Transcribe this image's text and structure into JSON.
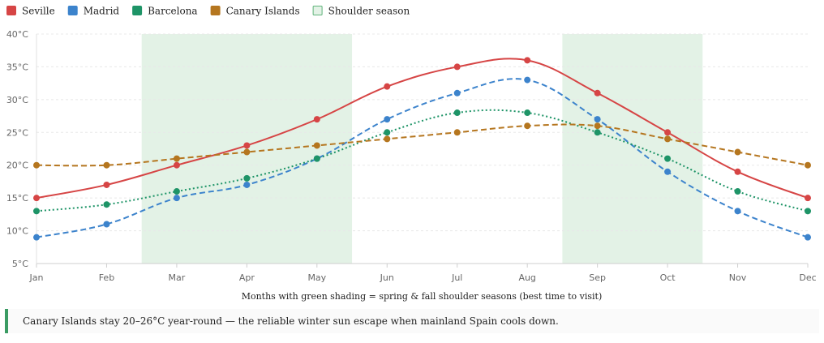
{
  "chart_data": {
    "type": "line",
    "title": "",
    "xlabel": "Months with green shading = spring & fall shoulder seasons (best time to visit)",
    "ylabel": "",
    "categories": [
      "Jan",
      "Feb",
      "Mar",
      "Apr",
      "May",
      "Jun",
      "Jul",
      "Aug",
      "Sep",
      "Oct",
      "Nov",
      "Dec"
    ],
    "ylim": [
      5,
      40
    ],
    "yticks": [
      5,
      10,
      15,
      20,
      25,
      30,
      35,
      40
    ],
    "ytick_labels": [
      "5°C",
      "10°C",
      "15°C",
      "20°C",
      "25°C",
      "30°C",
      "35°C",
      "40°C"
    ],
    "grid": true,
    "legend_position": "top-left",
    "series": [
      {
        "name": "Seville",
        "color": "#d64545",
        "dash": "solid",
        "values": [
          15,
          17,
          20,
          23,
          27,
          32,
          35,
          36,
          31,
          25,
          19,
          15
        ]
      },
      {
        "name": "Madrid",
        "color": "#3c83cc",
        "dash": "dashed",
        "values": [
          9,
          11,
          15,
          17,
          21,
          27,
          31,
          33,
          27,
          19,
          13,
          9
        ]
      },
      {
        "name": "Barcelona",
        "color": "#1e9467",
        "dash": "dotted",
        "values": [
          13,
          14,
          16,
          18,
          21,
          25,
          28,
          28,
          25,
          21,
          16,
          13
        ]
      },
      {
        "name": "Canary Islands",
        "color": "#b5761f",
        "dash": "dashed",
        "values": [
          20,
          20,
          21,
          22,
          23,
          24,
          25,
          26,
          26,
          24,
          22,
          20
        ]
      }
    ],
    "shaded_regions": [
      {
        "from": "Feb",
        "to": "May",
        "label": "spring"
      },
      {
        "from": "Aug",
        "to": "Oct",
        "label": "fall"
      }
    ],
    "shaded_region_legend": "Shoulder season",
    "shade_color": "#e3f2e6",
    "shade_border_color": "#5fb37a"
  },
  "note": {
    "text": "Canary Islands stay 20–26°C year-round — the reliable winter sun escape when mainland Spain cools down.",
    "accent_color": "#3a9b63"
  }
}
